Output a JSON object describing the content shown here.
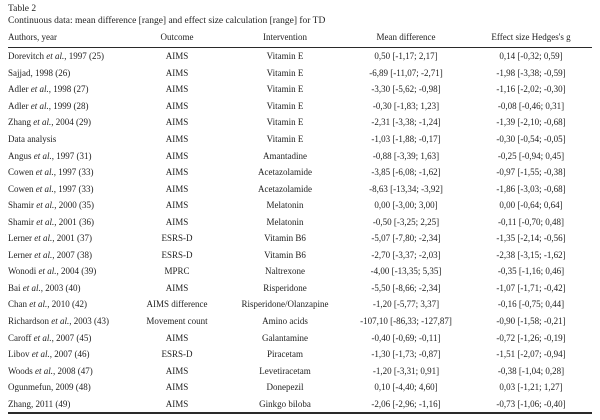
{
  "caption": {
    "label": "Table 2",
    "text": "Continuous data: mean difference [range] and effect size calculation [range] for TD"
  },
  "colors": {
    "text": "#1e1e1e",
    "background": "#ffffff",
    "rule": "#2a2a2a"
  },
  "table": {
    "columns": [
      "Authors, year",
      "Outcome",
      "Intervention",
      "Mean difference",
      "Effect size Hedges's g"
    ],
    "rows": [
      {
        "author_parts": [
          "Dorevitch ",
          "et al.",
          ", 1997 (25)"
        ],
        "outcome": "AIMS",
        "intervention": "Vitamin E",
        "mean_difference": "0,50 [-1,17; 2,17]",
        "effect_size": "0,14 [-0,32; 0,59]"
      },
      {
        "author_parts": [
          "Sajjad, 1998 (26)",
          "",
          ""
        ],
        "outcome": "AIMS",
        "intervention": "Vitamin E",
        "mean_difference": "-6,89 [-11,07; -2,71]",
        "effect_size": "-1,98 [-3,38; -0,59]"
      },
      {
        "author_parts": [
          "Adler ",
          "et al.",
          ", 1998 (27)"
        ],
        "outcome": "AIMS",
        "intervention": "Vitamin E",
        "mean_difference": "-3,30 [-5,62; -0,98]",
        "effect_size": "-1,16 [-2,02; -0,30]"
      },
      {
        "author_parts": [
          "Adler ",
          "et al.",
          ", 1999 (28)"
        ],
        "outcome": "AIMS",
        "intervention": "Vitamin E",
        "mean_difference": "-0,30 [-1,83; 1,23]",
        "effect_size": "-0,08 [-0,46; 0,31]"
      },
      {
        "author_parts": [
          "Zhang ",
          "et al.",
          ", 2004 (29)"
        ],
        "outcome": "AIMS",
        "intervention": "Vitamin E",
        "mean_difference": "-2,31 [-3,38; -1,24]",
        "effect_size": "-1,39 [-2,10; -0,68]"
      },
      {
        "author_parts": [
          "Data analysis",
          "",
          ""
        ],
        "outcome": "AIMS",
        "intervention": "Vitamin E",
        "mean_difference": "-1,03 [-1,88; -0,17]",
        "effect_size": "-0,30 [-0,54; -0,05]"
      },
      {
        "author_parts": [
          "Angus ",
          "et al.",
          ", 1997 (31)"
        ],
        "outcome": "AIMS",
        "intervention": "Amantadine",
        "mean_difference": "-0,88 [-3,39; 1,63]",
        "effect_size": "-0,25 [-0,94; 0,45]"
      },
      {
        "author_parts": [
          "Cowen ",
          "et al.",
          ", 1997 (33)"
        ],
        "outcome": "AIMS",
        "intervention": "Acetazolamide",
        "mean_difference": "-3,85 [-6,08; -1,62]",
        "effect_size": "-0,97 [-1,55; -0,38]"
      },
      {
        "author_parts": [
          "Cowen ",
          "et al.",
          ", 1997 (33)"
        ],
        "outcome": "AIMS",
        "intervention": "Acetazolamide",
        "mean_difference": "-8,63 [-13,34; -3,92]",
        "effect_size": "-1,86 [-3,03; -0,68]"
      },
      {
        "author_parts": [
          "Shamir ",
          "et al.",
          ", 2000 (35)"
        ],
        "outcome": "AIMS",
        "intervention": "Melatonin",
        "mean_difference": "0,00 [-3,00; 3,00]",
        "effect_size": "0,00 [-0,64; 0,64]"
      },
      {
        "author_parts": [
          "Shamir ",
          "et al.",
          ", 2001 (36)"
        ],
        "outcome": "AIMS",
        "intervention": "Melatonin",
        "mean_difference": "-0,50 [-3,25; 2,25]",
        "effect_size": "-0,11 [-0,70; 0,48]"
      },
      {
        "author_parts": [
          "Lerner ",
          "et al.",
          ", 2001 (37)"
        ],
        "outcome": "ESRS-D",
        "intervention": "Vitamin B6",
        "mean_difference": "-5,07 [-7,80; -2,34]",
        "effect_size": "-1,35 [-2,14; -0,56]"
      },
      {
        "author_parts": [
          "Lerner ",
          "et al.",
          ", 2007 (38)"
        ],
        "outcome": "ESRS-D",
        "intervention": "Vitamin B6",
        "mean_difference": "-2,70 [-3,37; -2,03]",
        "effect_size": "-2,38 [-3,15; -1,62]"
      },
      {
        "author_parts": [
          "Wonodi ",
          "et al.",
          ", 2004 (39)"
        ],
        "outcome": "MPRC",
        "intervention": "Naltrexone",
        "mean_difference": "-4,00 [-13,35; 5,35]",
        "effect_size": "-0,35 [-1,16; 0,46]"
      },
      {
        "author_parts": [
          "Bai ",
          "et al.",
          ", 2003 (40)"
        ],
        "outcome": "AIMS",
        "intervention": "Risperidone",
        "mean_difference": "-5,50 [-8,66; -2,34]",
        "effect_size": "-1,07 [-1,71; -0,42]"
      },
      {
        "author_parts": [
          "Chan ",
          "et al.",
          ", 2010 (42)"
        ],
        "outcome": "AIMS difference",
        "intervention": "Risperidone/Olanzapine",
        "mean_difference": "-1,20 [-5,77; 3,37]",
        "effect_size": "-0,16 [-0,75; 0,44]"
      },
      {
        "author_parts": [
          "Richardson ",
          "et al.",
          ", 2003 (43)"
        ],
        "outcome": "Movement count",
        "intervention": "Amino acids",
        "mean_difference": "-107,10 [-86,33; -127,87]",
        "effect_size": "-0,90 [-1,58; -0,21]"
      },
      {
        "author_parts": [
          "Caroff ",
          "et al.",
          ", 2007 (45)"
        ],
        "outcome": "AIMS",
        "intervention": "Galantamine",
        "mean_difference": "-0,40 [-0,69; -0,11]",
        "effect_size": "-0,72 [-1,26; -0,19]"
      },
      {
        "author_parts": [
          "Libov ",
          "et al.",
          ", 2007 (46)"
        ],
        "outcome": "ESRS-D",
        "intervention": "Piracetam",
        "mean_difference": "-1,30 [-1,73; -0,87]",
        "effect_size": "-1,51 [-2,07; -0,94]"
      },
      {
        "author_parts": [
          "Woods ",
          "et al.",
          ", 2008 (47)"
        ],
        "outcome": "AIMS",
        "intervention": "Levetiracetam",
        "mean_difference": "-1,20 [-3,31; 0,91]",
        "effect_size": "-0,38 [-1,04; 0,28]"
      },
      {
        "author_parts": [
          "Ogunmefun, 2009 (48)",
          "",
          ""
        ],
        "outcome": "AIMS",
        "intervention": "Donepezil",
        "mean_difference": "0,10 [-4,40; 4,60]",
        "effect_size": "0,03 [-1,21; 1,27]"
      },
      {
        "author_parts": [
          "Zhang, 2011 (49)",
          "",
          ""
        ],
        "outcome": "AIMS",
        "intervention": "Ginkgo biloba",
        "mean_difference": "-2,06 [-2,96; -1,16]",
        "effect_size": "-0,73 [-1,06; -0,40]"
      }
    ]
  }
}
